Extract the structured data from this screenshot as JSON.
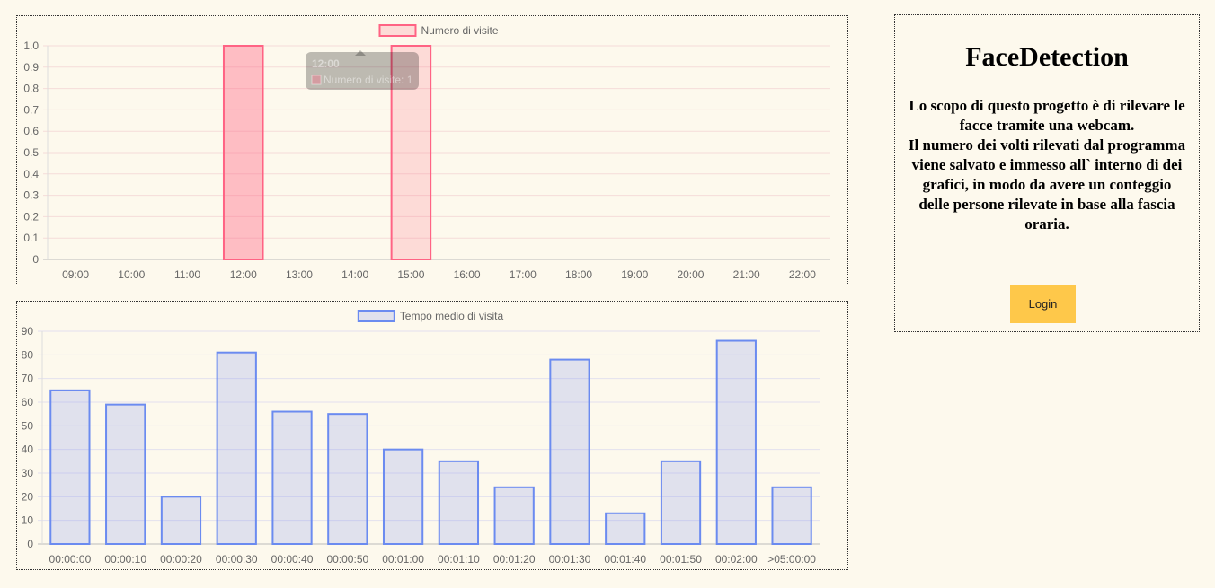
{
  "visits_chart": {
    "chart_data": {
      "type": "bar",
      "categories": [
        "09:00",
        "10:00",
        "11:00",
        "12:00",
        "13:00",
        "14:00",
        "15:00",
        "16:00",
        "17:00",
        "18:00",
        "19:00",
        "20:00",
        "21:00",
        "22:00"
      ],
      "series": [
        {
          "name": "Numero di visite",
          "values": [
            0,
            0,
            0,
            1,
            0,
            0,
            1,
            0,
            0,
            0,
            0,
            0,
            0,
            0
          ]
        }
      ],
      "ylim": [
        0,
        1
      ],
      "yticks": [
        "1.0",
        "0.9",
        "0.8",
        "0.7",
        "0.6",
        "0.5",
        "0.4",
        "0.3",
        "0.2",
        "0.1",
        "0"
      ],
      "grid": true,
      "legend": "top"
    },
    "colors": {
      "border": "#ff6384",
      "fill": "rgba(255,99,132,0.2)",
      "fill_hover": "rgba(255,99,132,0.4)",
      "grid": "#f5dcd9"
    },
    "tooltip": {
      "title": "12:00",
      "label": "Numero di visite: 1"
    }
  },
  "time_chart": {
    "chart_data": {
      "type": "bar",
      "categories": [
        "00:00:00",
        "00:00:10",
        "00:00:20",
        "00:00:30",
        "00:00:40",
        "00:00:50",
        "00:01:00",
        "00:01:10",
        "00:01:20",
        "00:01:30",
        "00:01:40",
        "00:01:50",
        "00:02:00",
        ">05:00:00"
      ],
      "series": [
        {
          "name": "Tempo medio di visita",
          "values": [
            65,
            59,
            20,
            81,
            56,
            55,
            40,
            35,
            24,
            78,
            13,
            35,
            86,
            24
          ]
        }
      ],
      "ylim": [
        0,
        90
      ],
      "yticks": [
        "90",
        "80",
        "70",
        "60",
        "50",
        "40",
        "30",
        "20",
        "10",
        "0"
      ],
      "grid": true,
      "legend": "top"
    },
    "colors": {
      "border": "#6b8bf0",
      "fill": "rgba(110,130,240,0.2)",
      "grid": "#e3e0ee"
    }
  },
  "info": {
    "title": "FaceDetection",
    "description_lines": [
      "Lo scopo di questo progetto è di rilevare le facce tramite una webcam.",
      "Il numero dei volti rilevati dal programma viene salvato e immesso all` interno di dei grafici, in modo da avere un conteggio",
      "delle persone rilevate in base alla fascia oraria."
    ],
    "login_label": "Login"
  }
}
